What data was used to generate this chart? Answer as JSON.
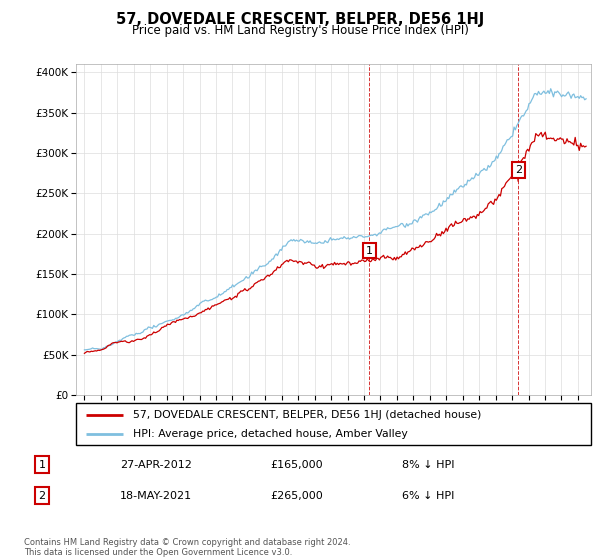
{
  "title": "57, DOVEDALE CRESCENT, BELPER, DE56 1HJ",
  "subtitle": "Price paid vs. HM Land Registry's House Price Index (HPI)",
  "ylabel_ticks": [
    "£0",
    "£50K",
    "£100K",
    "£150K",
    "£200K",
    "£250K",
    "£300K",
    "£350K",
    "£400K"
  ],
  "ytick_values": [
    0,
    50000,
    100000,
    150000,
    200000,
    250000,
    300000,
    350000,
    400000
  ],
  "ylim": [
    0,
    410000
  ],
  "xlim_start": 1994.5,
  "xlim_end": 2025.8,
  "hpi_color": "#7fbfdf",
  "price_color": "#cc0000",
  "sale1_x": 2012.33,
  "sale1_y": 165000,
  "sale2_x": 2021.38,
  "sale2_y": 265000,
  "legend_line1": "57, DOVEDALE CRESCENT, BELPER, DE56 1HJ (detached house)",
  "legend_line2": "HPI: Average price, detached house, Amber Valley",
  "table_row1": [
    "1",
    "27-APR-2012",
    "£165,000",
    "8% ↓ HPI"
  ],
  "table_row2": [
    "2",
    "18-MAY-2021",
    "£265,000",
    "6% ↓ HPI"
  ],
  "footer": "Contains HM Land Registry data © Crown copyright and database right 2024.\nThis data is licensed under the Open Government Licence v3.0.",
  "bg_color": "#ffffff",
  "grid_color": "#dddddd"
}
